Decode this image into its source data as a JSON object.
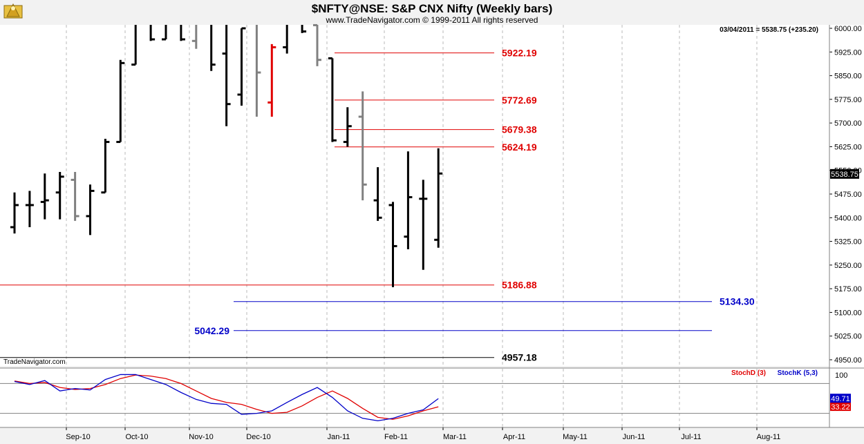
{
  "chart_data": [
    {
      "type": "ohlc",
      "title": "$NFTY@NSE:  S&P CNX Nifty  (Weekly bars)",
      "subtitle": "www.TradeNavigator.com © 1999-2011 All rights reserved",
      "watermark": "TradeNavigator.com",
      "last_info": "03/04/2011 = 5538.75 (+235.20)",
      "last_price_label": "5538.75",
      "ylim": [
        4930,
        6030
      ],
      "yticks": [
        "6000.00",
        "5925.00",
        "5850.00",
        "5775.00",
        "5700.00",
        "5625.00",
        "5550.00",
        "5475.00",
        "5400.00",
        "5325.00",
        "5250.00",
        "5175.00",
        "5100.00",
        "5025.00",
        "4950.00"
      ],
      "yticks_values": [
        6000,
        5925,
        5850,
        5775,
        5700,
        5625,
        5550,
        5475,
        5400,
        5325,
        5250,
        5175,
        5100,
        5025,
        4950
      ],
      "x_months": [
        "Sep-10",
        "Oct-10",
        "Nov-10",
        "Dec-10",
        "Jan-11",
        "Feb-11",
        "Mar-11",
        "Apr-11",
        "May-11",
        "Jun-11",
        "Jul-11",
        "Aug-11"
      ],
      "grid": true,
      "bars": [
        {
          "week": 1,
          "h": 5480,
          "l": 5350,
          "o": 5370,
          "c": 5440,
          "color": "#000000"
        },
        {
          "week": 2,
          "h": 5485,
          "l": 5370,
          "o": 5440,
          "c": 5440,
          "color": "#000000"
        },
        {
          "week": 3,
          "h": 5540,
          "l": 5395,
          "o": 5450,
          "c": 5455,
          "color": "#000000"
        },
        {
          "week": 4,
          "h": 5545,
          "l": 5395,
          "o": 5480,
          "c": 5530,
          "color": "#000000"
        },
        {
          "week": 5,
          "h": 5545,
          "l": 5390,
          "o": 5520,
          "c": 5405,
          "color": "#808080"
        },
        {
          "week": 6,
          "h": 5505,
          "l": 5345,
          "o": 5405,
          "c": 5485,
          "color": "#000000"
        },
        {
          "week": 7,
          "h": 5650,
          "l": 5480,
          "o": 5480,
          "c": 5640,
          "color": "#000000"
        },
        {
          "week": 8,
          "h": 5900,
          "l": 5640,
          "o": 5640,
          "c": 5890,
          "color": "#000000"
        },
        {
          "week": 9,
          "h": 6040,
          "l": 5885,
          "o": 5885,
          "c": 6030,
          "color": "#000000"
        },
        {
          "week": 10,
          "h": 6100,
          "l": 5960,
          "o": 6030,
          "c": 5965,
          "color": "#000000"
        },
        {
          "week": 11,
          "h": 6050,
          "l": 5965,
          "o": 5965,
          "c": 6050,
          "color": "#000000"
        },
        {
          "week": 12,
          "h": 6040,
          "l": 5960,
          "o": 6035,
          "c": 5965,
          "color": "#000000"
        },
        {
          "week": 13,
          "h": 6040,
          "l": 5935,
          "o": 5960,
          "c": 6040,
          "color": "#808080"
        },
        {
          "week": 14,
          "h": 6060,
          "l": 5865,
          "o": 6040,
          "c": 5885,
          "color": "#000000"
        },
        {
          "week": 15,
          "h": 6035,
          "l": 5690,
          "o": 5920,
          "c": 5760,
          "color": "#000000"
        },
        {
          "week": 16,
          "h": 6000,
          "l": 5755,
          "o": 5790,
          "c": 6000,
          "color": "#000000"
        },
        {
          "week": 17,
          "h": 6030,
          "l": 5720,
          "o": 6020,
          "c": 5860,
          "color": "#808080"
        },
        {
          "week": 18,
          "h": 5950,
          "l": 5720,
          "o": 5765,
          "c": 5940,
          "color": "#e00000"
        },
        {
          "week": 19,
          "h": 6035,
          "l": 5920,
          "o": 5940,
          "c": 6030,
          "color": "#000000"
        },
        {
          "week": 20,
          "h": 6030,
          "l": 5985,
          "o": 6020,
          "c": 5990,
          "color": "#000000"
        },
        {
          "week": 21,
          "h": 6020,
          "l": 5880,
          "o": 6010,
          "c": 5900,
          "color": "#808080"
        },
        {
          "week": 22,
          "h": 5905,
          "l": 5640,
          "o": 5905,
          "c": 5645,
          "color": "#000000"
        },
        {
          "week": 23,
          "h": 5750,
          "l": 5625,
          "o": 5640,
          "c": 5690,
          "color": "#000000"
        },
        {
          "week": 24,
          "h": 5800,
          "l": 5455,
          "o": 5720,
          "c": 5505,
          "color": "#808080"
        },
        {
          "week": 25,
          "h": 5560,
          "l": 5390,
          "o": 5455,
          "c": 5400,
          "color": "#000000"
        },
        {
          "week": 26,
          "h": 5450,
          "l": 5180,
          "o": 5440,
          "c": 5310,
          "color": "#000000"
        },
        {
          "week": 27,
          "h": 5610,
          "l": 5300,
          "o": 5340,
          "c": 5465,
          "color": "#000000"
        },
        {
          "week": 28,
          "h": 5520,
          "l": 5235,
          "o": 5460,
          "c": 5460,
          "color": "#000000"
        },
        {
          "week": 29,
          "h": 5620,
          "l": 5305,
          "o": 5330,
          "c": 5540,
          "color": "#000000"
        }
      ],
      "levels": [
        {
          "value": 5922.19,
          "label": "5922.19",
          "color": "#e00000"
        },
        {
          "value": 5772.69,
          "label": "5772.69",
          "color": "#e00000"
        },
        {
          "value": 5679.38,
          "label": "5679.38",
          "color": "#e00000"
        },
        {
          "value": 5624.19,
          "label": "5624.19",
          "color": "#e00000"
        },
        {
          "value": 5186.88,
          "label": "5186.88",
          "color": "#e00000"
        },
        {
          "value": 5134.3,
          "label": "5134.30",
          "color": "#0000c8"
        },
        {
          "value": 5042.29,
          "label": "5042.29",
          "color": "#0000c8"
        },
        {
          "value": 4957.18,
          "label": "4957.18",
          "color": "#000000"
        }
      ]
    },
    {
      "type": "line",
      "ylim": [
        0,
        110
      ],
      "ytick_label": "100",
      "ytick_value": 100,
      "guides": [
        80,
        20
      ],
      "series": [
        {
          "name": "StochD (3)",
          "color": "#e00000",
          "last_label": "33.22",
          "values": [
            85,
            80,
            82,
            72,
            68,
            70,
            78,
            90,
            97,
            95,
            90,
            80,
            65,
            50,
            42,
            38,
            28,
            20,
            22,
            35,
            52,
            65,
            50,
            30,
            12,
            8,
            15,
            25,
            33.22
          ]
        },
        {
          "name": "StochK (5,3)",
          "color": "#0000c8",
          "last_label": "49.71",
          "values": [
            84,
            78,
            86,
            65,
            70,
            67,
            88,
            98,
            98,
            88,
            78,
            62,
            48,
            40,
            38,
            18,
            20,
            25,
            42,
            58,
            72,
            52,
            25,
            10,
            5,
            10,
            20,
            27,
            49.71
          ]
        }
      ]
    }
  ]
}
